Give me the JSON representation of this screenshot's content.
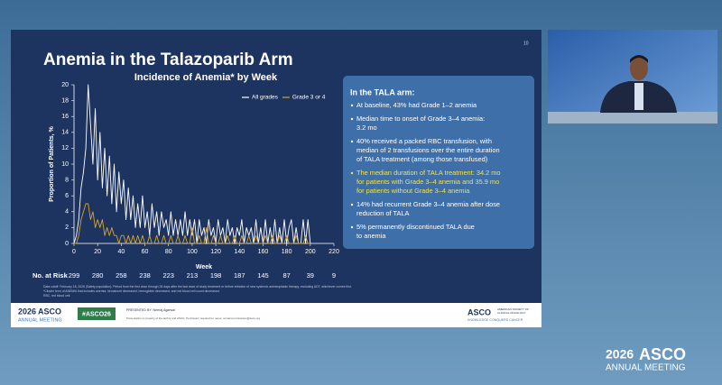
{
  "slide": {
    "page_number": "10",
    "title": "Anemia in the Talazoparib Arm",
    "box": {
      "heading": "In the TALA arm:",
      "bullets": [
        {
          "lines": [
            "At baseline, 43% had Grade 1–2 anemia"
          ],
          "color": "#ffffff"
        },
        {
          "lines": [
            "Median time to onset of Grade 3–4 anemia:",
            "3.2 mo"
          ],
          "color": "#ffffff"
        },
        {
          "lines": [
            "40% received a packed RBC transfusion, with",
            "median of 2 transfusions over the entire duration",
            "of TALA treatment (among those transfused)"
          ],
          "color": "#ffffff"
        },
        {
          "lines": [
            "The median duration of TALA treatment: 34.2 mo",
            "for patients with Grade 3–4 anemia and 35.9 mo",
            "for patients without Grade 3–4 anemia"
          ],
          "color": "#f2e24a"
        },
        {
          "lines": [
            "14% had recurrent Grade 3–4 anemia after dose",
            "reduction of TALA"
          ],
          "color": "#ffffff"
        },
        {
          "lines": [
            "5% permanently discontinued TALA due",
            "to anemia"
          ],
          "color": "#ffffff"
        }
      ]
    },
    "footnotes": [
      "Data cutoff: February 18, 2026 (Safety population). Period from the first dose through 28 days after the last dose of study treatment or before initiation of new systemic antineoplastic therapy, excluding ADT, whichever comes first.",
      "*Cluster term of ANEMIA that includes anemia, hematocrit decreased, hemoglobin decreased, and red blood cell count decreased.",
      "RBC, red blood cell."
    ],
    "footer": {
      "logo_year": "2026",
      "logo_name": "ASCO",
      "logo_sub": "ANNUAL MEETING",
      "hashtag": "#ASCO26",
      "presenter": "PRESENTED BY: Neeraj Agarwal",
      "notice": "Presentation is property of the author and ASCO. Permission required for reuse; contact permissions@asco.org.",
      "org": "ASCO",
      "org_sub1": "AMERICAN SOCIETY OF",
      "org_sub2": "CLINICAL ONCOLOGY",
      "org_tag": "KNOWLEDGE CONQUERS CANCER"
    }
  },
  "overlay": {
    "year": "2026",
    "name": "ASCO",
    "sub": "ANNUAL MEETING"
  },
  "chart_data": {
    "type": "line",
    "title": "Incidence of Anemia* by Week",
    "x_label": "Week",
    "y_label": "Proportion of Patients, %",
    "legend": "upper right",
    "grid": false,
    "x": [
      0,
      2,
      4,
      6,
      8,
      10,
      12,
      14,
      16,
      18,
      20,
      22,
      24,
      26,
      28,
      30,
      32,
      34,
      36,
      38,
      40,
      42,
      44,
      46,
      48,
      50,
      52,
      54,
      56,
      58,
      60,
      62,
      64,
      66,
      68,
      70,
      72,
      74,
      76,
      78,
      80,
      82,
      84,
      86,
      88,
      90,
      92,
      94,
      96,
      98,
      100,
      102,
      104,
      106,
      108,
      110,
      112,
      114,
      116,
      118,
      120,
      122,
      124,
      126,
      128,
      130,
      132,
      134,
      136,
      138,
      140,
      142,
      144,
      146,
      148,
      150,
      152,
      154,
      156,
      158,
      160,
      162,
      164,
      166,
      168,
      170,
      172,
      174,
      176,
      178,
      180,
      182,
      184,
      186,
      188,
      190,
      192,
      194,
      196,
      198,
      200
    ],
    "series": [
      {
        "name": "All grades",
        "color": "#ffffff",
        "values": [
          0,
          1,
          3,
          7,
          9,
          12,
          20,
          15,
          10,
          17,
          8,
          14,
          7,
          12,
          6,
          11,
          5,
          10,
          4,
          9,
          5,
          8,
          3,
          7,
          3,
          6,
          2,
          5,
          2,
          6,
          2,
          4,
          1,
          5,
          2,
          4,
          1,
          4,
          2,
          3,
          1,
          4,
          1,
          3,
          1,
          3,
          1,
          4,
          1,
          3,
          1,
          3,
          0,
          3,
          1,
          2,
          0,
          3,
          1,
          2,
          0,
          3,
          1,
          2,
          0,
          3,
          1,
          2,
          0,
          2,
          1,
          3,
          0,
          2,
          1,
          2,
          0,
          3,
          0,
          2,
          0,
          3,
          0,
          2,
          0,
          3,
          0,
          2,
          0,
          3,
          0,
          2,
          3,
          0,
          2,
          0,
          0,
          3,
          0,
          3,
          0
        ]
      },
      {
        "name": "Grade 3 or 4",
        "color": "#d9a42a",
        "values": [
          0,
          0,
          1,
          3,
          4,
          5,
          5,
          3,
          4,
          2,
          3,
          2,
          3,
          1,
          2,
          1,
          2,
          1,
          1,
          0,
          1,
          1,
          0,
          1,
          0,
          1,
          0,
          1,
          0,
          1,
          0,
          0,
          1,
          0,
          0,
          1,
          0,
          0,
          1,
          0,
          0,
          1,
          0,
          0,
          1,
          0,
          0,
          1,
          0,
          0,
          2,
          0,
          0,
          1,
          0,
          0,
          2,
          0,
          0,
          1,
          0,
          0,
          1,
          0,
          0,
          1,
          0,
          0,
          1,
          0,
          0,
          1,
          0,
          0,
          1,
          0,
          0,
          1,
          0,
          0,
          0,
          1,
          0,
          0,
          1,
          0,
          0,
          1,
          0,
          0,
          1,
          0,
          0,
          0,
          1,
          0,
          0,
          0,
          1,
          0,
          0
        ]
      }
    ],
    "xlim": [
      0,
      220
    ],
    "xticks": [
      0,
      20,
      40,
      60,
      80,
      100,
      120,
      140,
      160,
      180,
      200,
      220
    ],
    "ylim": [
      0,
      20
    ],
    "yticks": [
      0,
      2,
      4,
      6,
      8,
      10,
      12,
      14,
      16,
      18,
      20
    ],
    "at_risk_label": "No. at Risk",
    "at_risk": [
      299,
      280,
      258,
      238,
      223,
      213,
      198,
      187,
      145,
      87,
      39,
      9
    ]
  }
}
